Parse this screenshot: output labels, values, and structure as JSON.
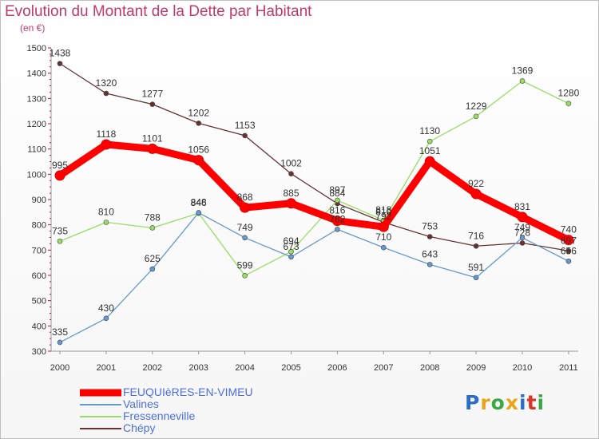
{
  "title": "Evolution du Montant de la Dette par Habitant",
  "unit": "(en €)",
  "logo": {
    "text": "Proxiti",
    "colors": [
      "#2b6cc8",
      "#e8a51a",
      "#39a845",
      "#e8a51a",
      "#2b6cc8",
      "#d9362a",
      "#39a845"
    ]
  },
  "chart_data": {
    "type": "line",
    "x": [
      "2000",
      "2001",
      "2002",
      "2003",
      "2004",
      "2005",
      "2006",
      "2007",
      "2008",
      "2009",
      "2010",
      "2011"
    ],
    "ylim": [
      300,
      1500
    ],
    "yticks": [
      "300",
      "400",
      "500",
      "600",
      "700",
      "800",
      "900",
      "1000",
      "1100",
      "1200",
      "1300",
      "1400",
      "1500"
    ],
    "grid": false,
    "legend_position": "bottom-left",
    "series": [
      {
        "name": "FEUQUIèRES-EN-VIMEU",
        "color": "#ff0000",
        "values": [
          995,
          1118,
          1101,
          1056,
          868,
          885,
          816,
          792,
          1051,
          922,
          831,
          740
        ]
      },
      {
        "name": "Valines",
        "color": "#6699cc",
        "values": [
          335,
          430,
          625,
          848,
          749,
          673,
          782,
          710,
          643,
          591,
          749,
          656
        ]
      },
      {
        "name": "Fressenneville",
        "color": "#99dd66",
        "values": [
          735,
          810,
          788,
          846,
          599,
          694,
          897,
          818,
          1130,
          1229,
          1369,
          1280
        ]
      },
      {
        "name": "Chépy",
        "color": "#663333",
        "values": [
          1438,
          1320,
          1277,
          1202,
          1153,
          1002,
          884,
          810,
          753,
          716,
          728,
          697
        ]
      }
    ],
    "data_labels": [
      [
        "995",
        "1118",
        "1101",
        "1056",
        "868",
        "885",
        "816",
        "792",
        "1051",
        "922",
        "831",
        "740"
      ],
      [
        "335",
        "430",
        "625",
        "848",
        "749",
        "673",
        "782",
        "710",
        "643",
        "591",
        "749",
        "656"
      ],
      [
        "735",
        "810",
        "788",
        "846",
        "599",
        "694",
        "897",
        "818",
        "1130",
        "1229",
        "1369",
        "1280"
      ],
      [
        "1438",
        "1320",
        "1277",
        "1202",
        "1153",
        "1002",
        "884",
        "810",
        "753",
        "716",
        "728",
        "697"
      ]
    ]
  }
}
